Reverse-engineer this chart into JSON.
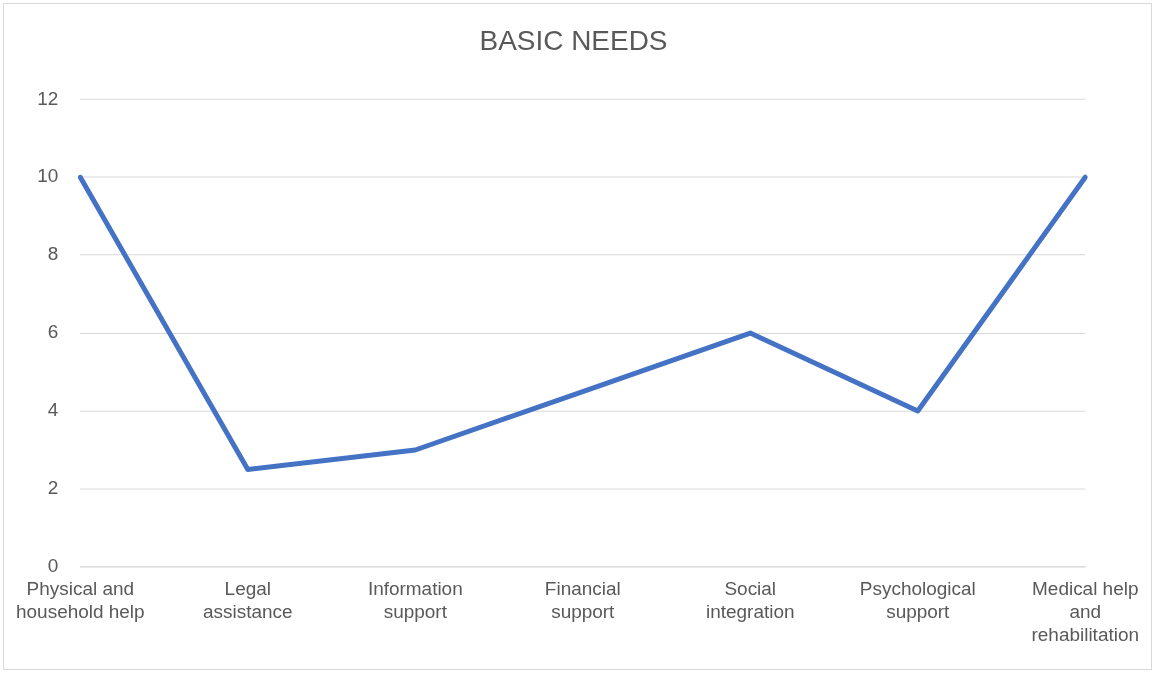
{
  "chart_data": {
    "type": "line",
    "title": "BASIC NEEDS",
    "categories": [
      "Physical and household help",
      "Legal assistance",
      "Information support",
      "Financial support",
      "Social integration",
      "Psychological support",
      "Medical help and rehabilitation"
    ],
    "series": [
      {
        "color": "#4472c4",
        "values": [
          10,
          2.5,
          3,
          4.5,
          6,
          4,
          10
        ]
      }
    ],
    "ylim": [
      0,
      12
    ],
    "yticks": [
      0,
      2,
      4,
      6,
      8,
      10,
      12
    ],
    "grid": "y",
    "legend": false,
    "marker": "none",
    "line_style": "solid"
  }
}
